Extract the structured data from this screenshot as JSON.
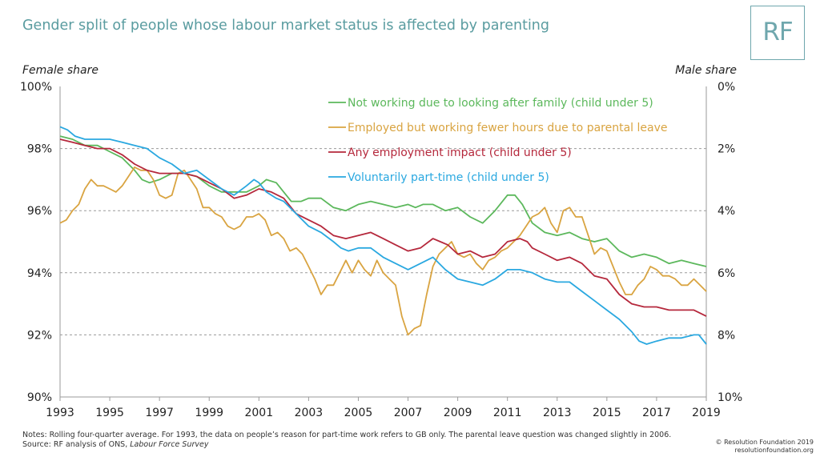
{
  "header": {
    "title": "Gender split of people whose labour market status is affected by parenting",
    "logo": "RF"
  },
  "axes": {
    "left_caption": "Female share",
    "right_caption": "Male share"
  },
  "footer": {
    "notes_line1": "Notes: Rolling four-quarter average. For 1993, the data on people’s reason for part-time work refers to GB only. The parental leave question was changed slightly in 2006.",
    "source_prefix": "Source: RF analysis of ONS, ",
    "source_name": "Labour Force Survey",
    "copyright": "© Resolution Foundation 2019",
    "website": "resolutionfoundation.org"
  },
  "chart_data": {
    "type": "line",
    "title": "Gender split of people whose labour market status is affected by parenting",
    "ylabel": "Female share",
    "y2label": "Male share",
    "xlim": [
      1993,
      2019
    ],
    "ylim": [
      90,
      100
    ],
    "x_ticks": [
      1993,
      1995,
      1997,
      1999,
      2001,
      2003,
      2005,
      2007,
      2009,
      2011,
      2013,
      2015,
      2017,
      2019
    ],
    "y_ticks": [
      "90%",
      "92%",
      "94%",
      "96%",
      "98%",
      "100%"
    ],
    "y2_ticks": [
      "10%",
      "8%",
      "6%",
      "4%",
      "2%",
      "0%"
    ],
    "grid": "horizontal dashed",
    "legend_position": "top-right",
    "series": [
      {
        "name": "Not working due to looking after family (child under 5)",
        "color": "#5cb85c",
        "points": [
          [
            1993.0,
            98.4
          ],
          [
            1993.5,
            98.3
          ],
          [
            1994.0,
            98.1
          ],
          [
            1994.5,
            98.1
          ],
          [
            1995.0,
            97.9
          ],
          [
            1995.5,
            97.7
          ],
          [
            1996.0,
            97.3
          ],
          [
            1996.3,
            97.0
          ],
          [
            1996.6,
            96.9
          ],
          [
            1997.0,
            97.0
          ],
          [
            1997.5,
            97.2
          ],
          [
            1998.0,
            97.2
          ],
          [
            1998.5,
            97.1
          ],
          [
            1999.0,
            96.8
          ],
          [
            1999.5,
            96.6
          ],
          [
            2000.0,
            96.6
          ],
          [
            2000.5,
            96.6
          ],
          [
            2001.0,
            96.8
          ],
          [
            2001.3,
            97.0
          ],
          [
            2001.7,
            96.9
          ],
          [
            2002.0,
            96.6
          ],
          [
            2002.3,
            96.3
          ],
          [
            2002.7,
            96.3
          ],
          [
            2003.0,
            96.4
          ],
          [
            2003.5,
            96.4
          ],
          [
            2004.0,
            96.1
          ],
          [
            2004.5,
            96.0
          ],
          [
            2005.0,
            96.2
          ],
          [
            2005.5,
            96.3
          ],
          [
            2006.0,
            96.2
          ],
          [
            2006.5,
            96.1
          ],
          [
            2007.0,
            96.2
          ],
          [
            2007.3,
            96.1
          ],
          [
            2007.6,
            96.2
          ],
          [
            2008.0,
            96.2
          ],
          [
            2008.5,
            96.0
          ],
          [
            2009.0,
            96.1
          ],
          [
            2009.5,
            95.8
          ],
          [
            2010.0,
            95.6
          ],
          [
            2010.5,
            96.0
          ],
          [
            2011.0,
            96.5
          ],
          [
            2011.3,
            96.5
          ],
          [
            2011.6,
            96.2
          ],
          [
            2012.0,
            95.6
          ],
          [
            2012.5,
            95.3
          ],
          [
            2013.0,
            95.2
          ],
          [
            2013.5,
            95.3
          ],
          [
            2014.0,
            95.1
          ],
          [
            2014.5,
            95.0
          ],
          [
            2015.0,
            95.1
          ],
          [
            2015.5,
            94.7
          ],
          [
            2016.0,
            94.5
          ],
          [
            2016.5,
            94.6
          ],
          [
            2017.0,
            94.5
          ],
          [
            2017.5,
            94.3
          ],
          [
            2018.0,
            94.4
          ],
          [
            2018.5,
            94.3
          ],
          [
            2019.0,
            94.2
          ]
        ]
      },
      {
        "name": "Employed but working fewer hours due to parental leave",
        "color": "#d9a441",
        "points": [
          [
            1993.0,
            95.6
          ],
          [
            1993.25,
            95.7
          ],
          [
            1993.5,
            96.0
          ],
          [
            1993.75,
            96.2
          ],
          [
            1994.0,
            96.7
          ],
          [
            1994.25,
            97.0
          ],
          [
            1994.5,
            96.8
          ],
          [
            1994.75,
            96.8
          ],
          [
            1995.0,
            96.7
          ],
          [
            1995.25,
            96.6
          ],
          [
            1995.5,
            96.8
          ],
          [
            1995.75,
            97.1
          ],
          [
            1996.0,
            97.4
          ],
          [
            1996.25,
            97.3
          ],
          [
            1996.5,
            97.3
          ],
          [
            1996.75,
            97.0
          ],
          [
            1997.0,
            96.5
          ],
          [
            1997.25,
            96.4
          ],
          [
            1997.5,
            96.5
          ],
          [
            1997.75,
            97.2
          ],
          [
            1998.0,
            97.3
          ],
          [
            1998.25,
            97.0
          ],
          [
            1998.5,
            96.7
          ],
          [
            1998.75,
            96.1
          ],
          [
            1999.0,
            96.1
          ],
          [
            1999.25,
            95.9
          ],
          [
            1999.5,
            95.8
          ],
          [
            1999.75,
            95.5
          ],
          [
            2000.0,
            95.4
          ],
          [
            2000.25,
            95.5
          ],
          [
            2000.5,
            95.8
          ],
          [
            2000.75,
            95.8
          ],
          [
            2001.0,
            95.9
          ],
          [
            2001.25,
            95.7
          ],
          [
            2001.5,
            95.2
          ],
          [
            2001.75,
            95.3
          ],
          [
            2002.0,
            95.1
          ],
          [
            2002.25,
            94.7
          ],
          [
            2002.5,
            94.8
          ],
          [
            2002.75,
            94.6
          ],
          [
            2003.0,
            94.2
          ],
          [
            2003.25,
            93.8
          ],
          [
            2003.5,
            93.3
          ],
          [
            2003.75,
            93.6
          ],
          [
            2004.0,
            93.6
          ],
          [
            2004.25,
            94.0
          ],
          [
            2004.5,
            94.4
          ],
          [
            2004.75,
            94.0
          ],
          [
            2005.0,
            94.4
          ],
          [
            2005.25,
            94.1
          ],
          [
            2005.5,
            93.9
          ],
          [
            2005.75,
            94.4
          ],
          [
            2006.0,
            94.0
          ],
          [
            2006.25,
            93.8
          ],
          [
            2006.5,
            93.6
          ],
          [
            2006.75,
            92.6
          ],
          [
            2007.0,
            92.0
          ],
          [
            2007.25,
            92.2
          ],
          [
            2007.5,
            92.3
          ],
          [
            2007.75,
            93.3
          ],
          [
            2008.0,
            94.2
          ],
          [
            2008.25,
            94.6
          ],
          [
            2008.5,
            94.8
          ],
          [
            2008.75,
            95.0
          ],
          [
            2009.0,
            94.6
          ],
          [
            2009.25,
            94.5
          ],
          [
            2009.5,
            94.6
          ],
          [
            2009.75,
            94.3
          ],
          [
            2010.0,
            94.1
          ],
          [
            2010.25,
            94.4
          ],
          [
            2010.5,
            94.5
          ],
          [
            2010.75,
            94.7
          ],
          [
            2011.0,
            94.8
          ],
          [
            2011.25,
            95.0
          ],
          [
            2011.5,
            95.2
          ],
          [
            2011.75,
            95.5
          ],
          [
            2012.0,
            95.8
          ],
          [
            2012.25,
            95.9
          ],
          [
            2012.5,
            96.1
          ],
          [
            2012.75,
            95.6
          ],
          [
            2013.0,
            95.3
          ],
          [
            2013.25,
            96.0
          ],
          [
            2013.5,
            96.1
          ],
          [
            2013.75,
            95.8
          ],
          [
            2014.0,
            95.8
          ],
          [
            2014.25,
            95.2
          ],
          [
            2014.5,
            94.6
          ],
          [
            2014.75,
            94.8
          ],
          [
            2015.0,
            94.7
          ],
          [
            2015.25,
            94.2
          ],
          [
            2015.5,
            93.7
          ],
          [
            2015.75,
            93.3
          ],
          [
            2016.0,
            93.3
          ],
          [
            2016.25,
            93.6
          ],
          [
            2016.5,
            93.8
          ],
          [
            2016.75,
            94.2
          ],
          [
            2017.0,
            94.1
          ],
          [
            2017.25,
            93.9
          ],
          [
            2017.5,
            93.9
          ],
          [
            2017.75,
            93.8
          ],
          [
            2018.0,
            93.6
          ],
          [
            2018.25,
            93.6
          ],
          [
            2018.5,
            93.8
          ],
          [
            2018.75,
            93.6
          ],
          [
            2019.0,
            93.4
          ]
        ]
      },
      {
        "name": "Any employment impact (child under 5)",
        "color": "#b5283c",
        "points": [
          [
            1993.0,
            98.3
          ],
          [
            1993.5,
            98.2
          ],
          [
            1994.0,
            98.1
          ],
          [
            1994.5,
            98.0
          ],
          [
            1995.0,
            98.0
          ],
          [
            1995.5,
            97.8
          ],
          [
            1996.0,
            97.5
          ],
          [
            1996.5,
            97.3
          ],
          [
            1997.0,
            97.2
          ],
          [
            1997.5,
            97.2
          ],
          [
            1998.0,
            97.2
          ],
          [
            1998.5,
            97.1
          ],
          [
            1999.0,
            96.9
          ],
          [
            1999.5,
            96.7
          ],
          [
            2000.0,
            96.4
          ],
          [
            2000.5,
            96.5
          ],
          [
            2001.0,
            96.7
          ],
          [
            2001.5,
            96.6
          ],
          [
            2002.0,
            96.4
          ],
          [
            2002.5,
            95.9
          ],
          [
            2003.0,
            95.7
          ],
          [
            2003.5,
            95.5
          ],
          [
            2004.0,
            95.2
          ],
          [
            2004.5,
            95.1
          ],
          [
            2005.0,
            95.2
          ],
          [
            2005.5,
            95.3
          ],
          [
            2006.0,
            95.1
          ],
          [
            2006.5,
            94.9
          ],
          [
            2007.0,
            94.7
          ],
          [
            2007.5,
            94.8
          ],
          [
            2008.0,
            95.1
          ],
          [
            2008.3,
            95.0
          ],
          [
            2008.6,
            94.9
          ],
          [
            2009.0,
            94.6
          ],
          [
            2009.5,
            94.7
          ],
          [
            2010.0,
            94.5
          ],
          [
            2010.5,
            94.6
          ],
          [
            2011.0,
            95.0
          ],
          [
            2011.5,
            95.1
          ],
          [
            2011.8,
            95.0
          ],
          [
            2012.0,
            94.8
          ],
          [
            2012.5,
            94.6
          ],
          [
            2013.0,
            94.4
          ],
          [
            2013.5,
            94.5
          ],
          [
            2014.0,
            94.3
          ],
          [
            2014.5,
            93.9
          ],
          [
            2015.0,
            93.8
          ],
          [
            2015.5,
            93.3
          ],
          [
            2016.0,
            93.0
          ],
          [
            2016.5,
            92.9
          ],
          [
            2017.0,
            92.9
          ],
          [
            2017.5,
            92.8
          ],
          [
            2018.0,
            92.8
          ],
          [
            2018.5,
            92.8
          ],
          [
            2019.0,
            92.6
          ]
        ]
      },
      {
        "name": "Voluntarily part-time (child under 5)",
        "color": "#2aa8e0",
        "points": [
          [
            1993.0,
            98.7
          ],
          [
            1993.3,
            98.6
          ],
          [
            1993.6,
            98.4
          ],
          [
            1994.0,
            98.3
          ],
          [
            1994.5,
            98.3
          ],
          [
            1995.0,
            98.3
          ],
          [
            1995.5,
            98.2
          ],
          [
            1996.0,
            98.1
          ],
          [
            1996.5,
            98.0
          ],
          [
            1997.0,
            97.7
          ],
          [
            1997.5,
            97.5
          ],
          [
            1998.0,
            97.2
          ],
          [
            1998.5,
            97.3
          ],
          [
            1999.0,
            97.0
          ],
          [
            1999.5,
            96.7
          ],
          [
            2000.0,
            96.5
          ],
          [
            2000.5,
            96.8
          ],
          [
            2000.8,
            97.0
          ],
          [
            2001.0,
            96.9
          ],
          [
            2001.3,
            96.6
          ],
          [
            2001.7,
            96.4
          ],
          [
            2002.0,
            96.3
          ],
          [
            2002.5,
            95.9
          ],
          [
            2003.0,
            95.5
          ],
          [
            2003.5,
            95.3
          ],
          [
            2004.0,
            95.0
          ],
          [
            2004.3,
            94.8
          ],
          [
            2004.6,
            94.7
          ],
          [
            2005.0,
            94.8
          ],
          [
            2005.5,
            94.8
          ],
          [
            2006.0,
            94.5
          ],
          [
            2006.5,
            94.3
          ],
          [
            2007.0,
            94.1
          ],
          [
            2007.5,
            94.3
          ],
          [
            2008.0,
            94.5
          ],
          [
            2008.5,
            94.1
          ],
          [
            2009.0,
            93.8
          ],
          [
            2009.5,
            93.7
          ],
          [
            2010.0,
            93.6
          ],
          [
            2010.5,
            93.8
          ],
          [
            2011.0,
            94.1
          ],
          [
            2011.5,
            94.1
          ],
          [
            2012.0,
            94.0
          ],
          [
            2012.5,
            93.8
          ],
          [
            2013.0,
            93.7
          ],
          [
            2013.5,
            93.7
          ],
          [
            2014.0,
            93.4
          ],
          [
            2014.5,
            93.1
          ],
          [
            2015.0,
            92.8
          ],
          [
            2015.5,
            92.5
          ],
          [
            2016.0,
            92.1
          ],
          [
            2016.3,
            91.8
          ],
          [
            2016.6,
            91.7
          ],
          [
            2017.0,
            91.8
          ],
          [
            2017.5,
            91.9
          ],
          [
            2018.0,
            91.9
          ],
          [
            2018.5,
            92.0
          ],
          [
            2018.7,
            92.0
          ],
          [
            2019.0,
            91.7
          ]
        ]
      }
    ]
  }
}
